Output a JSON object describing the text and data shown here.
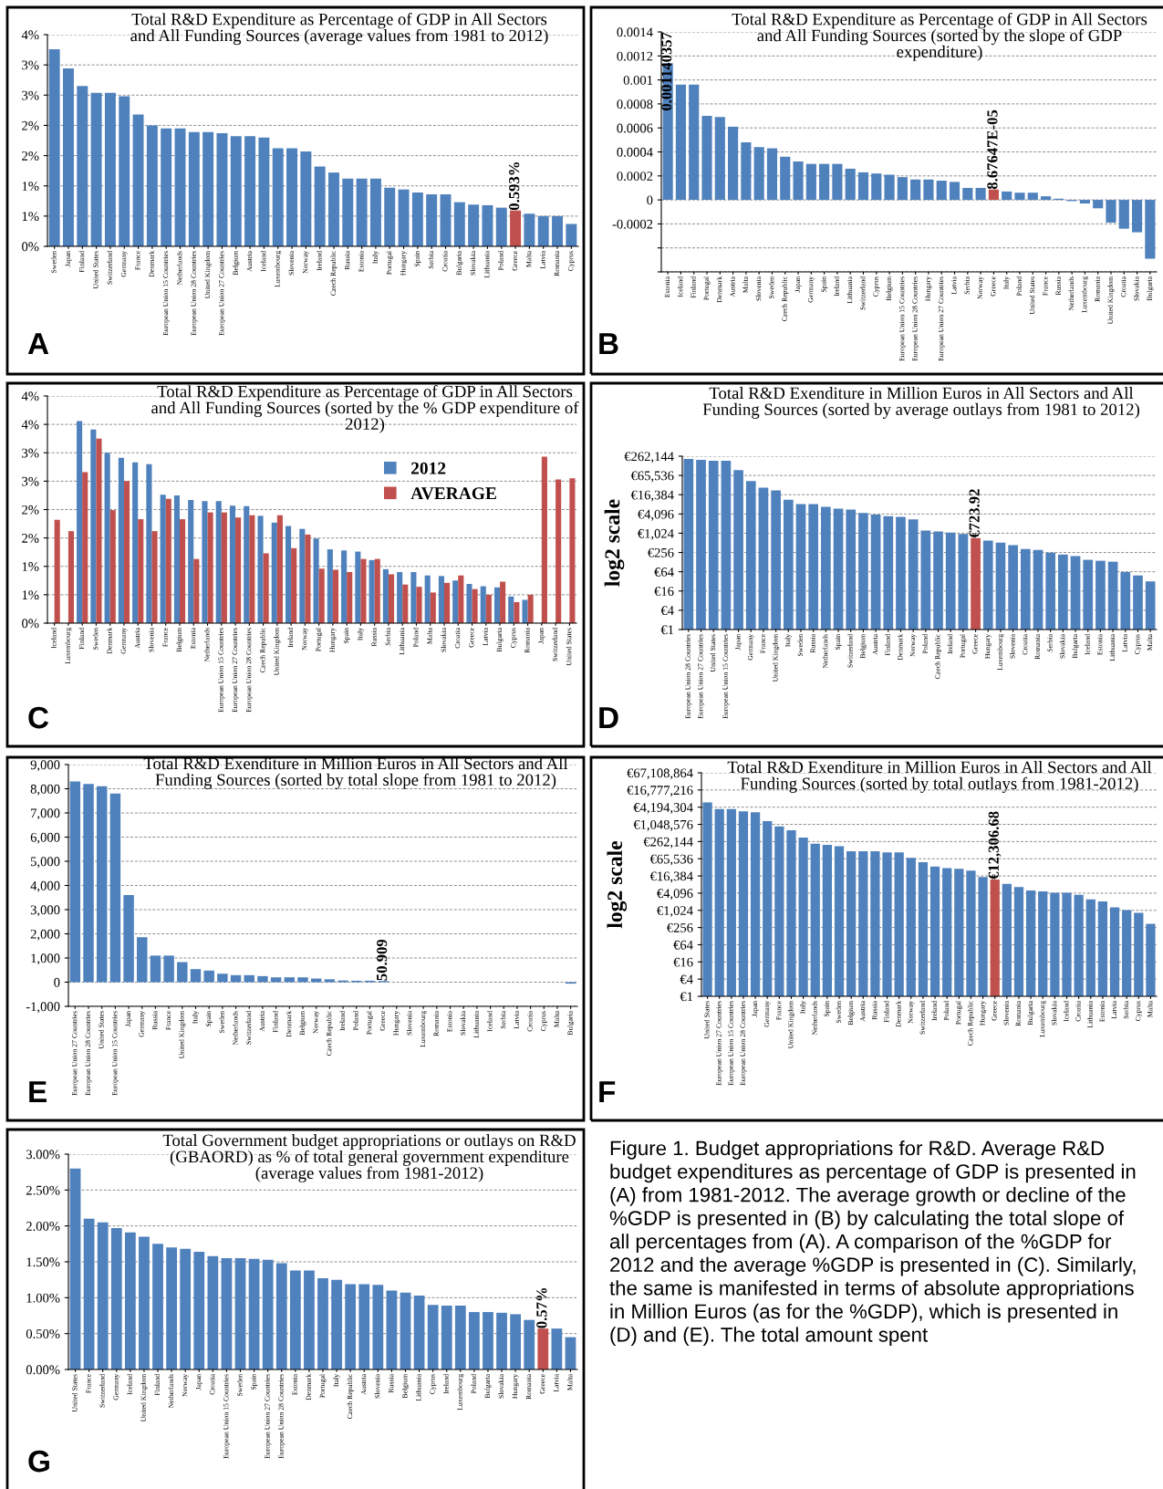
{
  "chart_data": [
    {
      "type": "bar",
      "title": "Total R&D Expenditure as Percentage of GDP in All Sectors and All Funding Sources (average values from 1981 to 2012)",
      "categories": [
        "Sweden",
        "Japan",
        "Finland",
        "United States",
        "Switzerland",
        "Germany",
        "France",
        "Denmark",
        "European Union 15 Countries",
        "Netherlands",
        "European Union 28 Countries",
        "United Kingdom",
        "European Union 27 Countries",
        "Belgium",
        "Austria",
        "Iceland",
        "Luxembourg",
        "Slovenia",
        "Norway",
        "Ireland",
        "Czech Republic",
        "Russia",
        "Estonia",
        "Italy",
        "Portugal",
        "Hungary",
        "Spain",
        "Serbia",
        "Croatia",
        "Bulgaria",
        "Slovakia",
        "Lithuania",
        "Poland",
        "Greece",
        "Malta",
        "Latvia",
        "Romania",
        "Cyprus"
      ],
      "values": [
        3.26,
        2.94,
        2.65,
        2.54,
        2.54,
        2.48,
        2.18,
        2.0,
        1.95,
        1.95,
        1.89,
        1.89,
        1.87,
        1.82,
        1.82,
        1.8,
        1.62,
        1.62,
        1.57,
        1.32,
        1.22,
        1.12,
        1.12,
        1.12,
        0.97,
        0.94,
        0.89,
        0.86,
        0.86,
        0.73,
        0.69,
        0.68,
        0.64,
        0.593,
        0.54,
        0.5,
        0.5,
        0.37
      ],
      "colors": [
        "#4f81bd",
        "#4f81bd",
        "#4f81bd",
        "#4f81bd",
        "#4f81bd",
        "#4f81bd",
        "#4f81bd",
        "#4f81bd",
        "#4f81bd",
        "#4f81bd",
        "#4f81bd",
        "#4f81bd",
        "#4f81bd",
        "#4f81bd",
        "#4f81bd",
        "#4f81bd",
        "#4f81bd",
        "#4f81bd",
        "#4f81bd",
        "#4f81bd",
        "#4f81bd",
        "#4f81bd",
        "#4f81bd",
        "#4f81bd",
        "#4f81bd",
        "#4f81bd",
        "#4f81bd",
        "#4f81bd",
        "#4f81bd",
        "#4f81bd",
        "#4f81bd",
        "#4f81bd",
        "#4f81bd",
        "#c0504d",
        "#4f81bd",
        "#4f81bd",
        "#4f81bd",
        "#4f81bd"
      ],
      "value_labels": [
        null,
        null,
        null,
        null,
        null,
        null,
        null,
        null,
        null,
        null,
        null,
        null,
        null,
        null,
        null,
        null,
        null,
        null,
        null,
        null,
        null,
        null,
        null,
        null,
        null,
        null,
        null,
        null,
        null,
        null,
        null,
        null,
        null,
        "0.593%",
        null,
        null,
        null,
        null
      ],
      "ylim": [
        0,
        3.5
      ],
      "yticks": [
        {
          "value": 0,
          "label": "0%"
        },
        {
          "value": 0.5,
          "label": "1%"
        },
        {
          "value": 1,
          "label": "1%"
        },
        {
          "value": 1.5,
          "label": "2%"
        },
        {
          "value": 2,
          "label": "2%"
        },
        {
          "value": 2.5,
          "label": "3%"
        },
        {
          "value": 3,
          "label": "3%"
        },
        {
          "value": 3.5,
          "label": "4%"
        }
      ],
      "grid": "y",
      "annotations": [
        "A"
      ]
    },
    {
      "type": "bar",
      "title": "Total R&D Expenditure as Percentage of GDP in All Sectors and All Funding Sources (sorted by the slope of GDP expenditure)",
      "categories": [
        "Estonia",
        "Iceland",
        "Finland",
        "Portugal",
        "Denmark",
        "Austria",
        "Malta",
        "Slovenia",
        "Sweden",
        "Czech Republic",
        "Japan",
        "Germany",
        "Spain",
        "Ireland",
        "Lithuania",
        "Switzerland",
        "Cyprus",
        "Belgium",
        "European Union 15 Countries",
        "European Union 28 Countries",
        "Hungary",
        "European Union 27 Countries",
        "Latvia",
        "Serbia",
        "Norway",
        "Greece",
        "Italy",
        "Poland",
        "United States",
        "France",
        "Russia",
        "Netherlands",
        "Luxembourg",
        "Romania",
        "United Kingdom",
        "Croatia",
        "Slovakia",
        "Bulgaria"
      ],
      "values": [
        0.001140357,
        0.00096,
        0.00096,
        0.0007,
        0.00069,
        0.00061,
        0.00048,
        0.00044,
        0.00043,
        0.00036,
        0.00032,
        0.0003,
        0.0003,
        0.0003,
        0.00026,
        0.00023,
        0.00022,
        0.00021,
        0.00019,
        0.00017,
        0.00017,
        0.00016,
        0.00015,
        0.0001,
        0.0001,
        8.67647e-05,
        7e-05,
        6e-05,
        6e-05,
        3e-05,
        1e-05,
        -1e-05,
        -3e-05,
        -7e-05,
        -0.00019,
        -0.00024,
        -0.00027,
        -0.00049
      ],
      "colors": [
        "#4f81bd",
        "#4f81bd",
        "#4f81bd",
        "#4f81bd",
        "#4f81bd",
        "#4f81bd",
        "#4f81bd",
        "#4f81bd",
        "#4f81bd",
        "#4f81bd",
        "#4f81bd",
        "#4f81bd",
        "#4f81bd",
        "#4f81bd",
        "#4f81bd",
        "#4f81bd",
        "#4f81bd",
        "#4f81bd",
        "#4f81bd",
        "#4f81bd",
        "#4f81bd",
        "#4f81bd",
        "#4f81bd",
        "#4f81bd",
        "#4f81bd",
        "#c0504d",
        "#4f81bd",
        "#4f81bd",
        "#4f81bd",
        "#4f81bd",
        "#4f81bd",
        "#4f81bd",
        "#4f81bd",
        "#4f81bd",
        "#4f81bd",
        "#4f81bd",
        "#4f81bd",
        "#4f81bd"
      ],
      "value_labels": [
        "0.001140357",
        null,
        null,
        null,
        null,
        null,
        null,
        null,
        null,
        null,
        null,
        null,
        null,
        null,
        null,
        null,
        null,
        null,
        null,
        null,
        null,
        null,
        null,
        null,
        null,
        "8.67647E-05",
        null,
        null,
        null,
        null,
        null,
        null,
        null,
        null,
        null,
        null,
        null,
        null
      ],
      "ylim": [
        -0.0006,
        0.0014
      ],
      "yticks": [
        {
          "value": -0.0006,
          "label": null
        },
        {
          "value": -0.0004,
          "label": null
        },
        -0.0002,
        0,
        0.0002,
        0.0004,
        0.0006,
        0.0008,
        0.001,
        0.0012,
        0.0014
      ],
      "grid": "y",
      "annotations": [
        "B"
      ]
    },
    {
      "type": "bar",
      "title": "Total R&D Expenditure as Percentage of GDP in All Sectors and All Funding Sources (sorted by the % GDP expenditure of 2012)",
      "categories": [
        "Iceland",
        "Luxembourg",
        "Finland",
        "Sweden",
        "Denmark",
        "Germany",
        "Austria",
        "Slovenia",
        "France",
        "Belgium",
        "Estonia",
        "Netherlands",
        "European Union 15 Countries",
        "European Union 27 Countries",
        "European Union 28 Countries",
        "Czech Republic",
        "United Kingdom",
        "Ireland",
        "Norway",
        "Portugal",
        "Hungary",
        "Spain",
        "Italy",
        "Russia",
        "Serbia",
        "Lithuania",
        "Poland",
        "Malta",
        "Slovakia",
        "Croatia",
        "Greece",
        "Latvia",
        "Bulgaria",
        "Cyprus",
        "Romania",
        "Japan",
        "Switzerland",
        "United States"
      ],
      "series": [
        {
          "name": "2012",
          "color": "#4f81bd",
          "values": [
            null,
            null,
            3.56,
            3.41,
            3.0,
            2.91,
            2.83,
            2.8,
            2.26,
            2.25,
            2.17,
            2.15,
            2.15,
            2.07,
            2.06,
            1.89,
            1.77,
            1.71,
            1.66,
            1.49,
            1.3,
            1.28,
            1.26,
            1.11,
            0.95,
            0.9,
            0.9,
            0.84,
            0.83,
            0.75,
            0.69,
            0.65,
            0.63,
            0.47,
            0.41,
            null,
            null,
            null
          ]
        },
        {
          "name": "AVERAGE",
          "color": "#c0504d",
          "values": [
            1.82,
            1.62,
            2.66,
            3.25,
            1.99,
            2.5,
            1.83,
            1.62,
            2.19,
            1.83,
            1.13,
            1.95,
            1.95,
            1.86,
            1.9,
            1.23,
            1.9,
            1.32,
            1.56,
            0.96,
            0.94,
            0.9,
            1.13,
            1.13,
            0.86,
            0.68,
            0.64,
            0.54,
            0.71,
            0.84,
            0.6,
            0.5,
            0.73,
            0.37,
            0.5,
            2.93,
            2.53,
            2.55
          ]
        }
      ],
      "ylim": [
        0,
        4
      ],
      "yticks": [
        {
          "value": 0,
          "label": "0%"
        },
        {
          "value": 0.5,
          "label": "1%"
        },
        {
          "value": 1,
          "label": "1%"
        },
        {
          "value": 1.5,
          "label": "2%"
        },
        {
          "value": 2,
          "label": "2%"
        },
        {
          "value": 2.5,
          "label": "3%"
        },
        {
          "value": 3,
          "label": "3%"
        },
        {
          "value": 3.5,
          "label": "4%"
        },
        {
          "value": 4,
          "label": "4%"
        }
      ],
      "grid": "y",
      "legend": "right",
      "annotations": [
        "C"
      ]
    },
    {
      "type": "bar",
      "title": "Total R&D Exenditure in Million Euros in All Sectors and All Funding Sources (sorted by average outlays from 1981 to 2012)",
      "ylabel": "log2 scale",
      "categories": [
        "European Union 28 Countries",
        "European Union 27 Countries",
        "United States",
        "European Union 15 Countries",
        "Japan",
        "Germany",
        "France",
        "United Kingdom",
        "Italy",
        "Sweden",
        "Russia",
        "Netherlands",
        "Spain",
        "Switzerland",
        "Belgium",
        "Austria",
        "Finland",
        "Denmark",
        "Norway",
        "Poland",
        "Czech Republic",
        "Ireland",
        "Portugal",
        "Greece",
        "Hungary",
        "Luxembourg",
        "Slovenia",
        "Croatia",
        "Romania",
        "Serbia",
        "Slovakia",
        "Bulgaria",
        "Iceland",
        "Estonia",
        "Lithuania",
        "Latvia",
        "Cyprus",
        "Malta"
      ],
      "values": [
        214000,
        200000,
        188000,
        188000,
        96000,
        44000,
        27400,
        22400,
        11400,
        8400,
        8400,
        6800,
        6000,
        5600,
        4400,
        3900,
        3500,
        3300,
        2800,
        1240,
        1160,
        1080,
        970,
        723.92,
        605,
        520,
        433,
        331,
        309,
        253,
        221,
        198,
        151,
        141,
        132,
        63,
        49,
        32
      ],
      "colors": [
        "#4f81bd",
        "#4f81bd",
        "#4f81bd",
        "#4f81bd",
        "#4f81bd",
        "#4f81bd",
        "#4f81bd",
        "#4f81bd",
        "#4f81bd",
        "#4f81bd",
        "#4f81bd",
        "#4f81bd",
        "#4f81bd",
        "#4f81bd",
        "#4f81bd",
        "#4f81bd",
        "#4f81bd",
        "#4f81bd",
        "#4f81bd",
        "#4f81bd",
        "#4f81bd",
        "#4f81bd",
        "#4f81bd",
        "#c0504d",
        "#4f81bd",
        "#4f81bd",
        "#4f81bd",
        "#4f81bd",
        "#4f81bd",
        "#4f81bd",
        "#4f81bd",
        "#4f81bd",
        "#4f81bd",
        "#4f81bd",
        "#4f81bd",
        "#4f81bd",
        "#4f81bd",
        "#4f81bd"
      ],
      "value_labels": [
        null,
        null,
        null,
        null,
        null,
        null,
        null,
        null,
        null,
        null,
        null,
        null,
        null,
        null,
        null,
        null,
        null,
        null,
        null,
        null,
        null,
        null,
        null,
        "€723.92",
        null,
        null,
        null,
        null,
        null,
        null,
        null,
        null,
        null,
        null,
        null,
        null,
        null,
        null
      ],
      "log": "y",
      "ylim": [
        1,
        262144
      ],
      "yticks": [
        {
          "value": 1,
          "label": "€1"
        },
        {
          "value": 4,
          "label": "€4"
        },
        {
          "value": 16,
          "label": "€16"
        },
        {
          "value": 64,
          "label": "€64"
        },
        {
          "value": 256,
          "label": "€256"
        },
        {
          "value": 1024,
          "label": "€1,024"
        },
        {
          "value": 4096,
          "label": "€4,096"
        },
        {
          "value": 16384,
          "label": "€16,384"
        },
        {
          "value": 65536,
          "label": "€65,536"
        },
        {
          "value": 262144,
          "label": "€262,144"
        }
      ],
      "grid": "y",
      "annotations": [
        "D"
      ]
    },
    {
      "type": "bar",
      "title": "Total R&D Exenditure in Million Euros in All Sectors and All Funding Sources (sorted by total slope from 1981 to 2012)",
      "categories": [
        "European Union 27 Countries",
        "European Union 28 Countries",
        "United States",
        "European Union 15 Countries",
        "Japan",
        "Germany",
        "Russia",
        "France",
        "United Kingdom",
        "Italy",
        "Spain",
        "Sweden",
        "Netherlands",
        "Switzerland",
        "Austria",
        "Finland",
        "Denmark",
        "Belgium",
        "Norway",
        "Czech Republic",
        "Ireland",
        "Poland",
        "Portugal",
        "Greece",
        "Hungary",
        "Slovenia",
        "Luxembourg",
        "Romania",
        "Estonia",
        "Slovakia",
        "Lithuania",
        "Iceland",
        "Serbia",
        "Latvia",
        "Croatia",
        "Cyprus",
        "Malta",
        "Bulgaria"
      ],
      "values": [
        8300,
        8200,
        8100,
        7800,
        3600,
        1860,
        1100,
        1100,
        830,
        540,
        480,
        350,
        290,
        290,
        250,
        200,
        200,
        200,
        150,
        120,
        70,
        60,
        60,
        50.909,
        0,
        0,
        0,
        0,
        0,
        0,
        0,
        0,
        0,
        0,
        0,
        0,
        0,
        -60
      ],
      "colors": [
        "#4f81bd",
        "#4f81bd",
        "#4f81bd",
        "#4f81bd",
        "#4f81bd",
        "#4f81bd",
        "#4f81bd",
        "#4f81bd",
        "#4f81bd",
        "#4f81bd",
        "#4f81bd",
        "#4f81bd",
        "#4f81bd",
        "#4f81bd",
        "#4f81bd",
        "#4f81bd",
        "#4f81bd",
        "#4f81bd",
        "#4f81bd",
        "#4f81bd",
        "#4f81bd",
        "#4f81bd",
        "#4f81bd",
        "#4f81bd",
        "#4f81bd",
        "#4f81bd",
        "#4f81bd",
        "#4f81bd",
        "#4f81bd",
        "#4f81bd",
        "#4f81bd",
        "#4f81bd",
        "#4f81bd",
        "#4f81bd",
        "#4f81bd",
        "#4f81bd",
        "#4f81bd",
        "#4f81bd"
      ],
      "value_labels": [
        null,
        null,
        null,
        null,
        null,
        null,
        null,
        null,
        null,
        null,
        null,
        null,
        null,
        null,
        null,
        null,
        null,
        null,
        null,
        null,
        null,
        null,
        null,
        "50.909",
        null,
        null,
        null,
        null,
        null,
        null,
        null,
        null,
        null,
        null,
        null,
        null,
        null,
        null
      ],
      "ylim": [
        -1000,
        9000
      ],
      "yticks": [
        {
          "value": -1000,
          "label": "-1,000"
        },
        0,
        {
          "value": 1000,
          "label": "1,000"
        },
        {
          "value": 2000,
          "label": "2,000"
        },
        {
          "value": 3000,
          "label": "3,000"
        },
        {
          "value": 4000,
          "label": "4,000"
        },
        {
          "value": 5000,
          "label": "5,000"
        },
        {
          "value": 6000,
          "label": "6,000"
        },
        {
          "value": 7000,
          "label": "7,000"
        },
        {
          "value": 8000,
          "label": "8,000"
        },
        {
          "value": 9000,
          "label": "9,000"
        }
      ],
      "grid": "y",
      "annotations": [
        "E"
      ]
    },
    {
      "type": "bar",
      "title": "Total R&D Exenditure in Million Euros in All Sectors and All Funding Sources (sorted by total outlays from 1981-2012)",
      "ylabel": "log2 scale",
      "categories": [
        "United States",
        "European Union 27 Countries",
        "European Union 15 Countries",
        "European Union 28 Countries",
        "Japan",
        "Germany",
        "France",
        "United Kingdom",
        "Italy",
        "Netherlands",
        "Spain",
        "Sweden",
        "Belgium",
        "Austria",
        "Russia",
        "Finland",
        "Denmark",
        "Norway",
        "Switzerland",
        "Ireland",
        "Poland",
        "Portugal",
        "Czech Republic",
        "Hungary",
        "Greece",
        "Slovenia",
        "Romania",
        "Bulgaria",
        "Luxembourg",
        "Slovakia",
        "Iceland",
        "Croatia",
        "Lithuania",
        "Estonia",
        "Latvia",
        "Serbia",
        "Cyprus",
        "Malta"
      ],
      "values": [
        6100000,
        3600000,
        3600000,
        3000000,
        2800000,
        1350000,
        890000,
        650000,
        360000,
        220000,
        200000,
        180000,
        120000,
        120000,
        120000,
        110000,
        110000,
        70000,
        50000,
        35000,
        31000,
        29000,
        25000,
        15000,
        12306.68,
        8700,
        6700,
        5100,
        4700,
        4200,
        4200,
        3600,
        2500,
        2100,
        1300,
        1040,
        830,
        345
      ],
      "colors": [
        "#4f81bd",
        "#4f81bd",
        "#4f81bd",
        "#4f81bd",
        "#4f81bd",
        "#4f81bd",
        "#4f81bd",
        "#4f81bd",
        "#4f81bd",
        "#4f81bd",
        "#4f81bd",
        "#4f81bd",
        "#4f81bd",
        "#4f81bd",
        "#4f81bd",
        "#4f81bd",
        "#4f81bd",
        "#4f81bd",
        "#4f81bd",
        "#4f81bd",
        "#4f81bd",
        "#4f81bd",
        "#4f81bd",
        "#4f81bd",
        "#c0504d",
        "#4f81bd",
        "#4f81bd",
        "#4f81bd",
        "#4f81bd",
        "#4f81bd",
        "#4f81bd",
        "#4f81bd",
        "#4f81bd",
        "#4f81bd",
        "#4f81bd",
        "#4f81bd",
        "#4f81bd",
        "#4f81bd"
      ],
      "value_labels": [
        null,
        null,
        null,
        null,
        null,
        null,
        null,
        null,
        null,
        null,
        null,
        null,
        null,
        null,
        null,
        null,
        null,
        null,
        null,
        null,
        null,
        null,
        null,
        null,
        "€12,306.68",
        null,
        null,
        null,
        null,
        null,
        null,
        null,
        null,
        null,
        null,
        null,
        null,
        null
      ],
      "log": "y",
      "ylim": [
        1,
        67108864
      ],
      "yticks": [
        {
          "value": 1,
          "label": "€1"
        },
        {
          "value": 4,
          "label": "€4"
        },
        {
          "value": 16,
          "label": "€16"
        },
        {
          "value": 64,
          "label": "€64"
        },
        {
          "value": 256,
          "label": "€256"
        },
        {
          "value": 1024,
          "label": "€1,024"
        },
        {
          "value": 4096,
          "label": "€4,096"
        },
        {
          "value": 16384,
          "label": "€16,384"
        },
        {
          "value": 65536,
          "label": "€65,536"
        },
        {
          "value": 262144,
          "label": "€262,144"
        },
        {
          "value": 1048576,
          "label": "€1,048,576"
        },
        {
          "value": 4194304,
          "label": "€4,194,304"
        },
        {
          "value": 16777216,
          "label": "€16,777,216"
        },
        {
          "value": 67108864,
          "label": "€67,108,864"
        }
      ],
      "grid": "y",
      "annotations": [
        "F"
      ]
    },
    {
      "type": "bar",
      "title": "Total Government budget appropriations or outlays on R&D (GBAORD) as % of total general government expenditure (average values from 1981-2012)",
      "categories": [
        "United States",
        "France",
        "Switzerland",
        "Germany",
        "Iceland",
        "United Kingdom",
        "Finland",
        "Netherlands",
        "Norway",
        "Japan",
        "Croatia",
        "European Union 15 Countries",
        "Sweden",
        "Spain",
        "European Union 27 Countries",
        "European Union 28 Countries",
        "Estonia",
        "Denmark",
        "Portugal",
        "Italy",
        "Czech Republic",
        "Austria",
        "Slovenia",
        "Russia",
        "Belgium",
        "Lithuania",
        "Cyprus",
        "Ireland",
        "Luxembourg",
        "Poland",
        "Bulgaria",
        "Slovakia",
        "Hungary",
        "Romania",
        "Greece",
        "Latvia",
        "Malta"
      ],
      "values": [
        2.8,
        2.1,
        2.05,
        1.97,
        1.91,
        1.85,
        1.75,
        1.7,
        1.68,
        1.64,
        1.58,
        1.55,
        1.55,
        1.54,
        1.53,
        1.48,
        1.38,
        1.38,
        1.27,
        1.25,
        1.19,
        1.19,
        1.18,
        1.1,
        1.07,
        1.03,
        0.9,
        0.89,
        0.89,
        0.8,
        0.8,
        0.79,
        0.77,
        0.69,
        0.57,
        0.57,
        0.45
      ],
      "colors": [
        "#4f81bd",
        "#4f81bd",
        "#4f81bd",
        "#4f81bd",
        "#4f81bd",
        "#4f81bd",
        "#4f81bd",
        "#4f81bd",
        "#4f81bd",
        "#4f81bd",
        "#4f81bd",
        "#4f81bd",
        "#4f81bd",
        "#4f81bd",
        "#4f81bd",
        "#4f81bd",
        "#4f81bd",
        "#4f81bd",
        "#4f81bd",
        "#4f81bd",
        "#4f81bd",
        "#4f81bd",
        "#4f81bd",
        "#4f81bd",
        "#4f81bd",
        "#4f81bd",
        "#4f81bd",
        "#4f81bd",
        "#4f81bd",
        "#4f81bd",
        "#4f81bd",
        "#4f81bd",
        "#4f81bd",
        "#4f81bd",
        "#c0504d",
        "#4f81bd",
        "#4f81bd"
      ],
      "value_labels": [
        null,
        null,
        null,
        null,
        null,
        null,
        null,
        null,
        null,
        null,
        null,
        null,
        null,
        null,
        null,
        null,
        null,
        null,
        null,
        null,
        null,
        null,
        null,
        null,
        null,
        null,
        null,
        null,
        null,
        null,
        null,
        null,
        null,
        null,
        "0.57%",
        null,
        null
      ],
      "ylim": [
        0,
        3
      ],
      "yticks": [
        {
          "value": 0,
          "label": "0.00%"
        },
        {
          "value": 0.5,
          "label": "0.50%"
        },
        {
          "value": 1,
          "label": "1.00%"
        },
        {
          "value": 1.5,
          "label": "1.50%"
        },
        {
          "value": 2,
          "label": "2.00%"
        },
        {
          "value": 2.5,
          "label": "2.50%"
        },
        {
          "value": 3,
          "label": "3.00%"
        }
      ],
      "grid": "y",
      "annotations": [
        "G",
        "Figure 1. Budget appropriations for R&D. Average R&D budget expenditures as percentage of GDP is presented in (A) from 1981-2012. The average growth or decline of the %GDP is presented in (B) by calculating the total slope of all percentages from (A). A comparison of the %GDP for 2012 and the average %GDP is presented in (C). Similarly, the same is manifested in terms of absolute appropriations in Million Euros (as for the %GDP), which is presented in (D) and (E). The total amount spent"
      ]
    }
  ]
}
